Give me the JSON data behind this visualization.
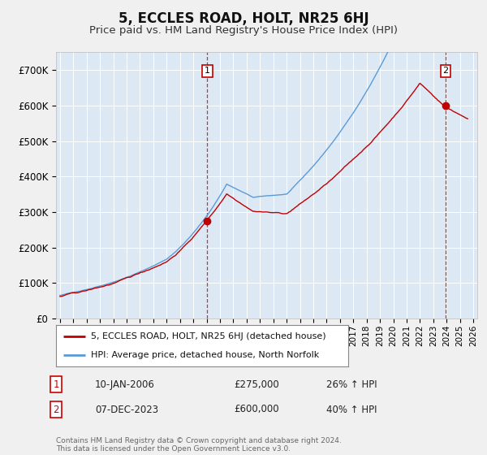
{
  "title": "5, ECCLES ROAD, HOLT, NR25 6HJ",
  "subtitle": "Price paid vs. HM Land Registry's House Price Index (HPI)",
  "title_fontsize": 12,
  "subtitle_fontsize": 9.5,
  "background_color": "#f0f0f0",
  "plot_bg_color": "#dce9f5",
  "grid_color": "#ffffff",
  "hpi_color": "#5b9bd5",
  "price_color": "#c00000",
  "ylim": [
    0,
    750000
  ],
  "yticks": [
    0,
    100000,
    200000,
    300000,
    400000,
    500000,
    600000,
    700000
  ],
  "sale1_year": 2006.04,
  "sale1_price": 275000,
  "sale2_year": 2023.92,
  "sale2_price": 600000,
  "legend_line1": "5, ECCLES ROAD, HOLT, NR25 6HJ (detached house)",
  "legend_line2": "HPI: Average price, detached house, North Norfolk",
  "note1_label": "1",
  "note1_date": "10-JAN-2006",
  "note1_price": "£275,000",
  "note1_hpi": "26% ↑ HPI",
  "note2_label": "2",
  "note2_date": "07-DEC-2023",
  "note2_price": "£600,000",
  "note2_hpi": "40% ↑ HPI",
  "copyright": "Contains HM Land Registry data © Crown copyright and database right 2024.\nThis data is licensed under the Open Government Licence v3.0.",
  "xlim_min": 1994.7,
  "xlim_max": 2026.3
}
